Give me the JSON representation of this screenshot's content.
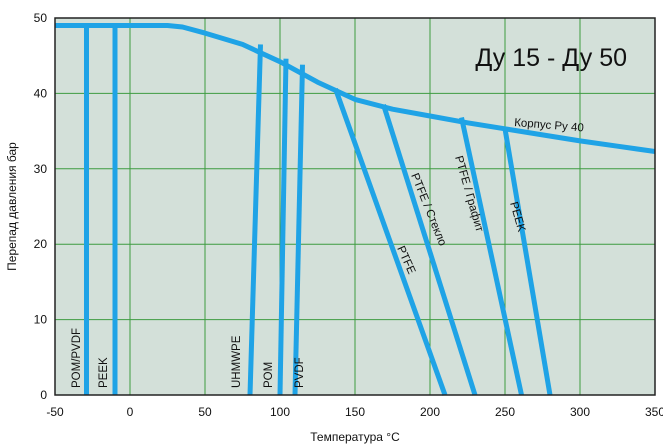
{
  "chart_data": {
    "type": "line",
    "title": "Ду 15 - Ду 50",
    "xlabel": "Температура °C",
    "ylabel": "Перепад давления бар",
    "xlim": [
      -50,
      350
    ],
    "ylim": [
      0,
      50
    ],
    "xticks": [
      -50,
      0,
      50,
      100,
      150,
      200,
      250,
      300,
      350
    ],
    "yticks": [
      0,
      10,
      20,
      30,
      40,
      50
    ],
    "grid": true,
    "colors": {
      "plot_bg": "#d3e0d9",
      "grid": "#3d9b40",
      "line": "#1fa3e6",
      "frame": "#222222"
    },
    "series": [
      {
        "name": "Корпус Ру 40",
        "x": [
          -50,
          0,
          25,
          35,
          50,
          75,
          100,
          125,
          150,
          175,
          200,
          225,
          250,
          275,
          300,
          325,
          350
        ],
        "y": [
          49,
          49,
          49,
          48.8,
          48,
          46.5,
          44.2,
          41.5,
          39.2,
          37.9,
          37.0,
          36.1,
          35.3,
          34.5,
          33.7,
          33.0,
          32.3
        ]
      },
      {
        "name": "POM/PVDF",
        "x": [
          -29,
          -29
        ],
        "y": [
          0,
          49
        ]
      },
      {
        "name": "PEEK",
        "x": [
          -10,
          -10
        ],
        "y": [
          0,
          49
        ]
      },
      {
        "name": "UHMWPE",
        "x": [
          80,
          87
        ],
        "y": [
          0,
          46.5
        ]
      },
      {
        "name": "POM",
        "x": [
          100,
          104
        ],
        "y": [
          0,
          44.6
        ]
      },
      {
        "name": "PVDF",
        "x": [
          110,
          115
        ],
        "y": [
          0,
          43.8
        ]
      },
      {
        "name": "PTFE",
        "x": [
          210,
          137
        ],
        "y": [
          0,
          40.6
        ]
      },
      {
        "name": "PTFE / Стекло",
        "x": [
          230,
          169
        ],
        "y": [
          0,
          38.5
        ]
      },
      {
        "name": "PTFE / Графит",
        "x": [
          261,
          221
        ],
        "y": [
          0,
          36.8
        ]
      },
      {
        "name": "PEEK",
        "x": [
          280,
          250
        ],
        "y": [
          0,
          35.3
        ]
      }
    ]
  }
}
